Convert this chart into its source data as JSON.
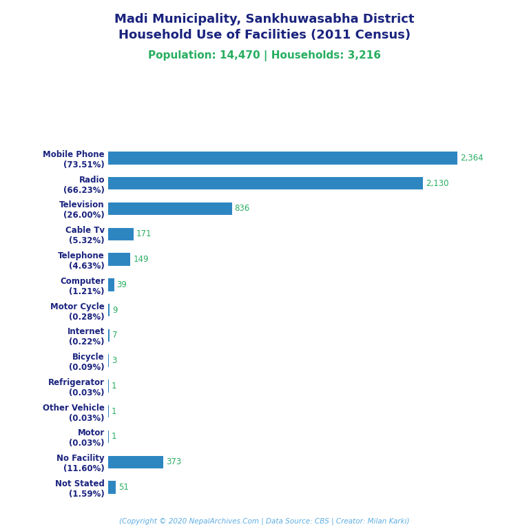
{
  "title_line1": "Madi Municipality, Sankhuwasabha District",
  "title_line2": "Household Use of Facilities (2011 Census)",
  "subtitle": "Population: 14,470 | Households: 3,216",
  "footer": "(Copyright © 2020 NepalArchives.Com | Data Source: CBS | Creator: Milan Karki)",
  "categories": [
    "Not Stated\n(1.59%)",
    "No Facility\n(11.60%)",
    "Motor\n(0.03%)",
    "Other Vehicle\n(0.03%)",
    "Refrigerator\n(0.03%)",
    "Bicycle\n(0.09%)",
    "Internet\n(0.22%)",
    "Motor Cycle\n(0.28%)",
    "Computer\n(1.21%)",
    "Telephone\n(4.63%)",
    "Cable Tv\n(5.32%)",
    "Television\n(26.00%)",
    "Radio\n(66.23%)",
    "Mobile Phone\n(73.51%)"
  ],
  "values": [
    51,
    373,
    1,
    1,
    1,
    3,
    7,
    9,
    39,
    149,
    171,
    836,
    2130,
    2364
  ],
  "bar_color": "#2e86c1",
  "value_color": "#27ae60",
  "title_color": "#1a237e",
  "subtitle_color": "#27ae60",
  "footer_color": "#5dade2",
  "background_color": "#ffffff",
  "xlim": [
    0,
    2650
  ]
}
